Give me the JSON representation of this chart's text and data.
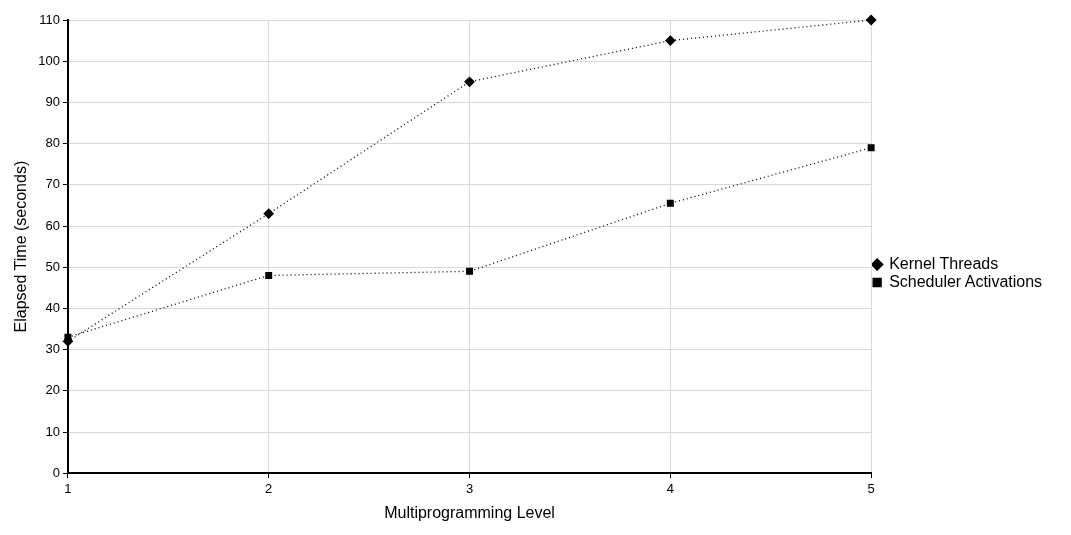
{
  "chart_data": {
    "type": "line",
    "xlabel": "Multiprogramming Level",
    "ylabel": "Elapsed Time (seconds)",
    "x": [
      1,
      2,
      3,
      4,
      5
    ],
    "series": [
      {
        "name": "Kernel Threads",
        "color": "#000000",
        "values": [
          32,
          63,
          95,
          105,
          110
        ],
        "marker": "diamond"
      },
      {
        "name": "Scheduler Activations",
        "color": "#000000",
        "values": [
          33,
          48,
          49,
          65.5,
          79
        ],
        "marker": "square"
      }
    ],
    "xlim": [
      1,
      5
    ],
    "xticks": [
      1,
      2,
      3,
      4,
      5
    ],
    "ylim": [
      0,
      110
    ],
    "yticks": [
      0,
      10,
      20,
      30,
      40,
      50,
      60,
      70,
      80,
      90,
      100,
      110
    ],
    "grid": true,
    "legend": "right",
    "line_style": "dotted"
  }
}
